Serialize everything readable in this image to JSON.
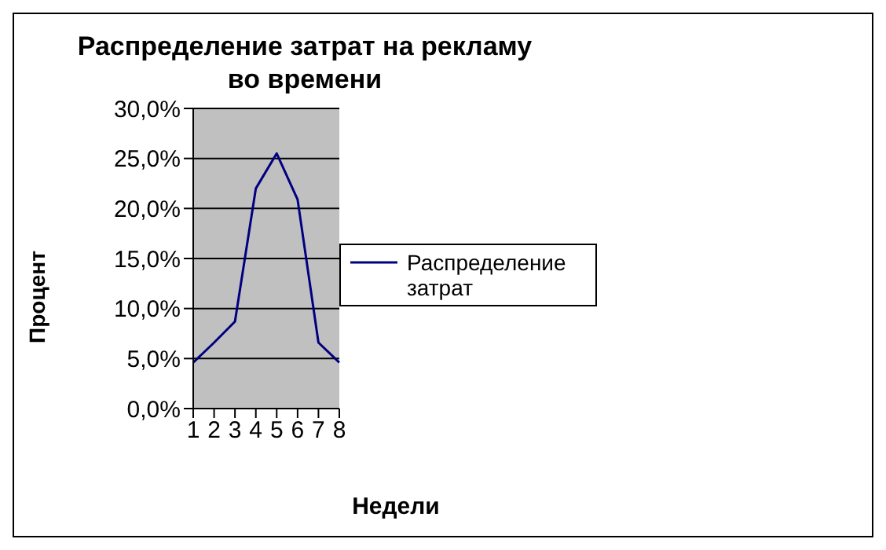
{
  "chart_data": {
    "type": "line",
    "title": "Распределение затрат на рекламу во времени",
    "xlabel": "Недели",
    "ylabel": "Процент",
    "categories": [
      "1",
      "2",
      "3",
      "4",
      "5",
      "6",
      "7",
      "8"
    ],
    "series": [
      {
        "name": "Распределение затрат",
        "color": "#000080",
        "values": [
          4.6,
          6.6,
          8.7,
          22.0,
          25.5,
          20.9,
          6.6,
          4.6
        ]
      }
    ],
    "ylim": [
      0,
      30
    ],
    "yticks": [
      {
        "value": 0,
        "label": "0,0%"
      },
      {
        "value": 5,
        "label": "5,0%"
      },
      {
        "value": 10,
        "label": "10,0%"
      },
      {
        "value": 15,
        "label": "15,0%"
      },
      {
        "value": 20,
        "label": "20,0%"
      },
      {
        "value": 25,
        "label": "25,0%"
      },
      {
        "value": 30,
        "label": "30,0%"
      }
    ],
    "grid": "y",
    "legend": "right",
    "marker": "none",
    "line_style": "solid"
  }
}
